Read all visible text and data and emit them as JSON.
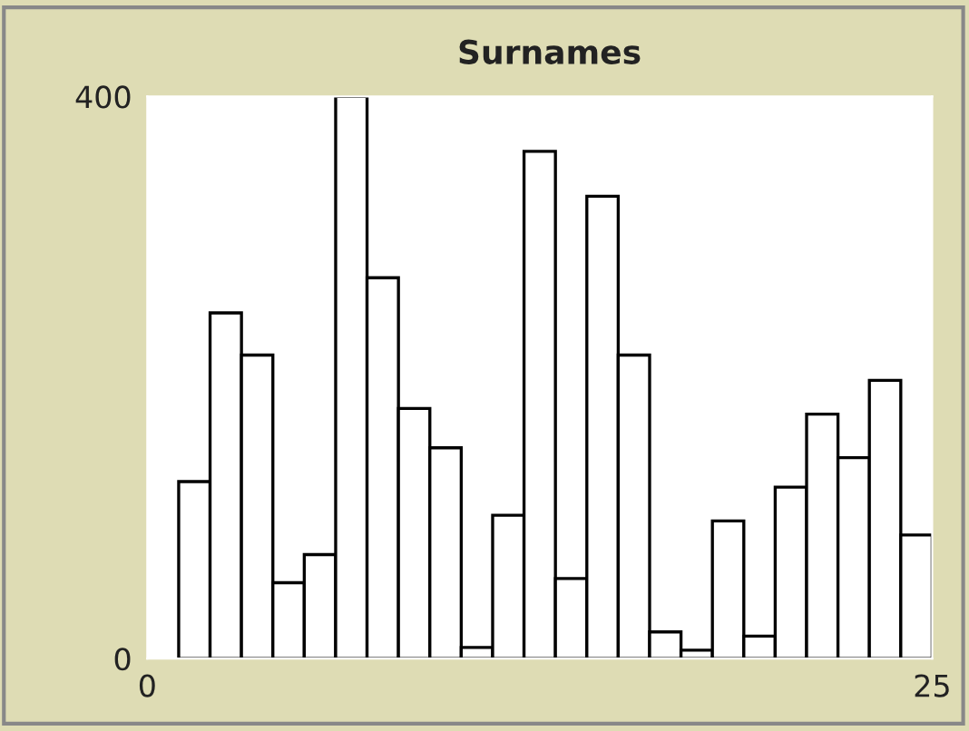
{
  "chart_data": {
    "type": "histogram",
    "title": "Surnames",
    "bins": [
      1,
      2,
      3,
      4,
      5,
      6,
      7,
      8,
      9,
      10,
      11,
      12,
      13,
      14,
      15,
      16,
      17,
      18,
      19,
      20,
      21,
      22,
      23,
      24,
      25
    ],
    "values": [
      126,
      246,
      216,
      54,
      74,
      400,
      271,
      178,
      150,
      8,
      102,
      361,
      57,
      329,
      216,
      19,
      6,
      98,
      16,
      122,
      174,
      143,
      198,
      88
    ],
    "color": "#ffffff",
    "xlim": [
      0,
      25
    ],
    "xticks": [
      0,
      25
    ],
    "ylim": [
      0,
      400
    ],
    "yticks": [
      0,
      400
    ],
    "grid": false
  }
}
